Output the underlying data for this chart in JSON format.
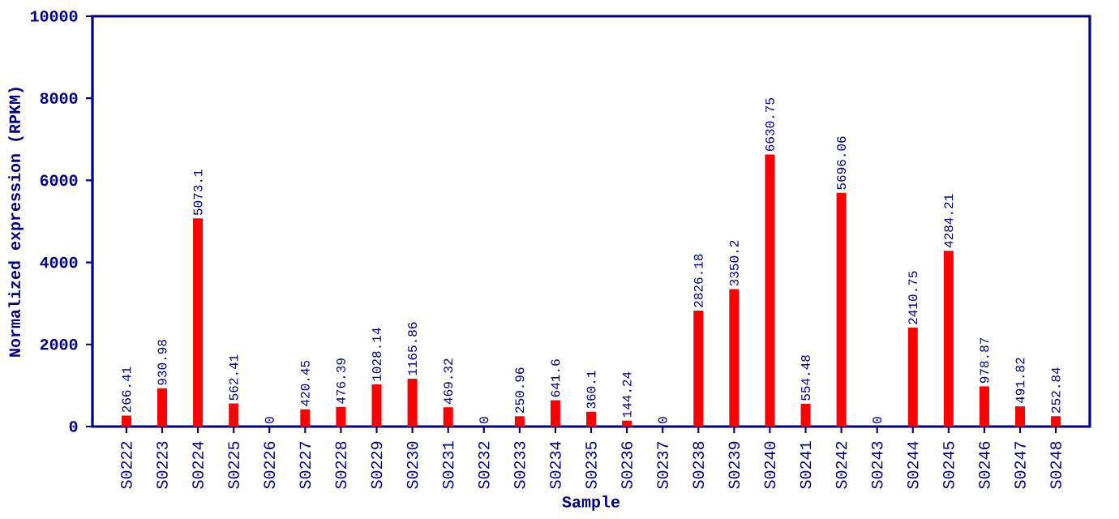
{
  "chart_data": {
    "type": "bar",
    "xlabel": "Sample",
    "ylabel": "Normalized expression (RPKM)",
    "categories": [
      "S0222",
      "S0223",
      "S0224",
      "S0225",
      "S0226",
      "S0227",
      "S0228",
      "S0229",
      "S0230",
      "S0231",
      "S0232",
      "S0233",
      "S0234",
      "S0235",
      "S0236",
      "S0237",
      "S0238",
      "S0239",
      "S0240",
      "S0241",
      "S0242",
      "S0243",
      "S0244",
      "S0245",
      "S0246",
      "S0247",
      "S0248"
    ],
    "values": [
      266.41,
      930.98,
      5073.1,
      562.41,
      0,
      420.45,
      476.39,
      1028.14,
      1165.86,
      469.32,
      0,
      250.96,
      641.6,
      360.1,
      144.24,
      0,
      2826.18,
      3350.2,
      6630.75,
      554.48,
      5696.06,
      0,
      2410.75,
      4284.21,
      978.87,
      491.82,
      252.84
    ],
    "color": "#ff0000",
    "ylim": [
      0,
      10000
    ],
    "yticks": [
      0,
      2000,
      4000,
      6000,
      8000,
      10000
    ],
    "data_labels": true
  }
}
